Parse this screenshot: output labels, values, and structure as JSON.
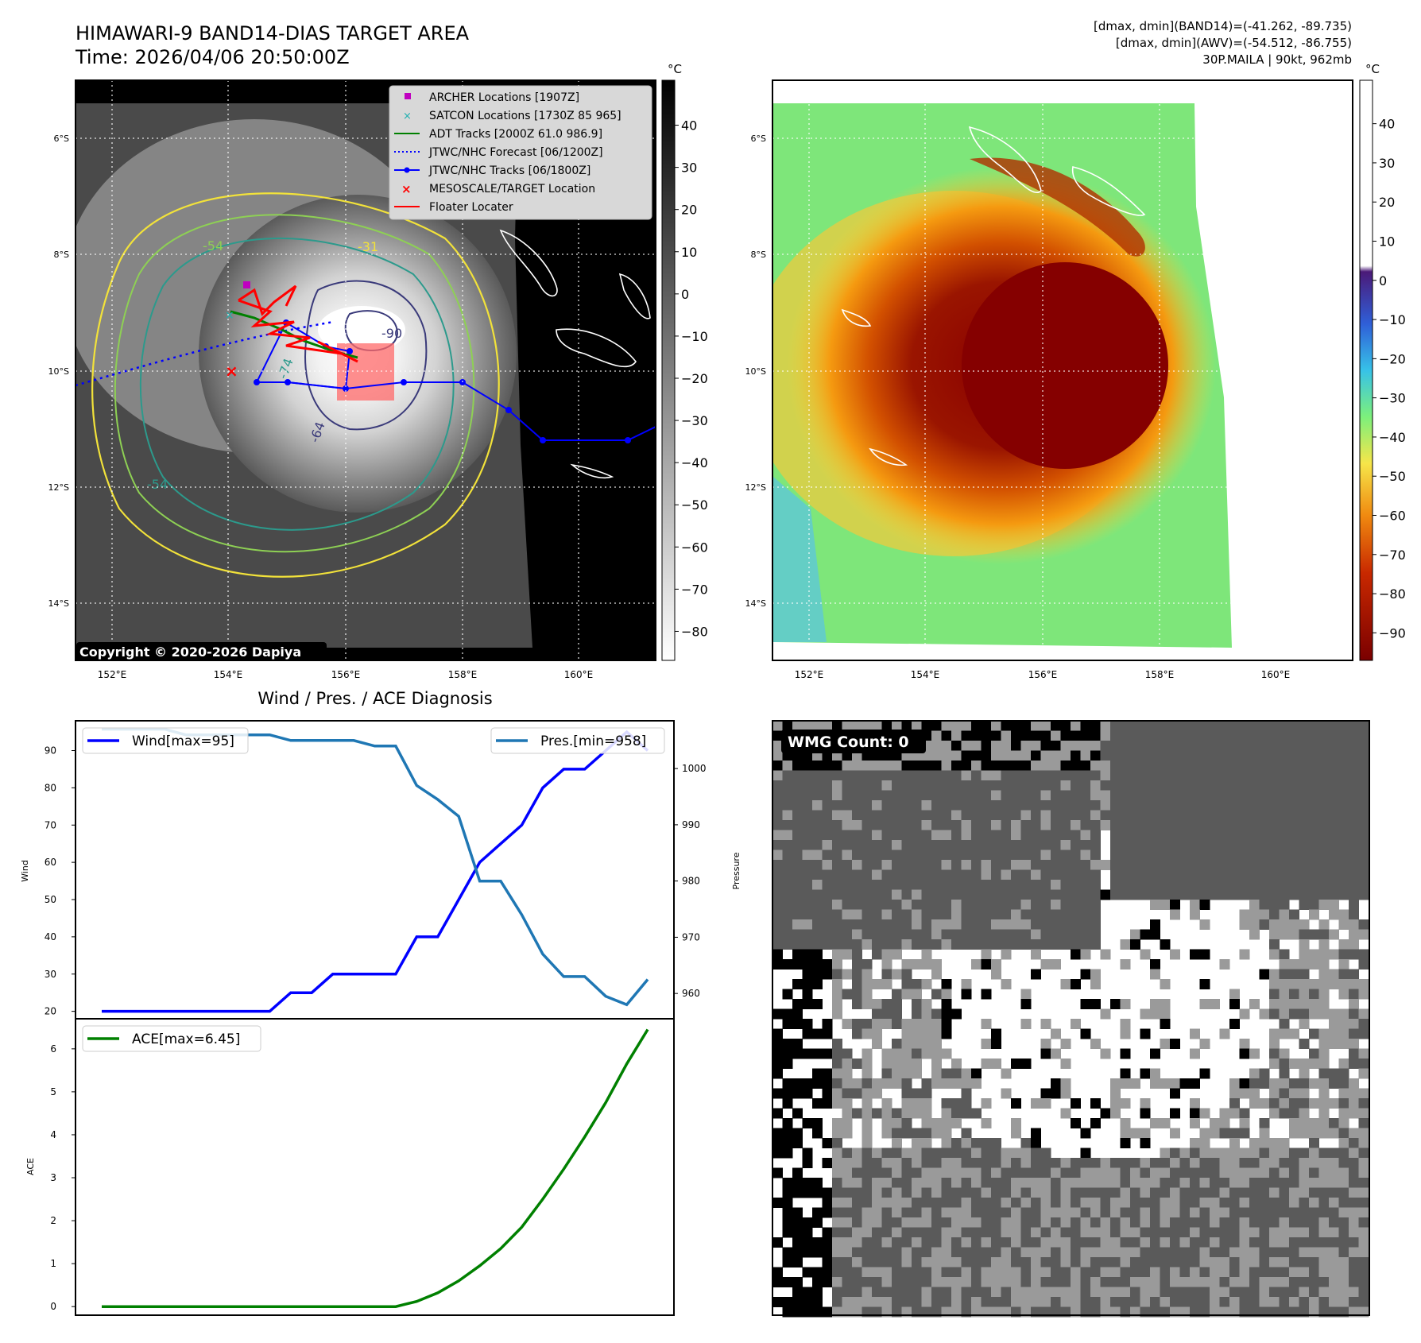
{
  "header": {
    "title_line1": "HIMAWARI-9 BAND14-DIAS TARGET AREA",
    "title_line2": "Time: 2026/04/06 20:50:00Z",
    "dmax_band14": "[dmax, dmin](BAND14)=(-41.262, -89.735)",
    "dmax_awv": "[dmax, dmin](AWV)=(-54.512, -86.755)",
    "storm": "30P.MAILA | 90kt, 962mb"
  },
  "map_axes": {
    "lat_ticks": [
      "6°S",
      "8°S",
      "10°S",
      "12°S",
      "14°S"
    ],
    "lon_ticks": [
      "152°E",
      "154°E",
      "156°E",
      "158°E",
      "160°E"
    ]
  },
  "ir_panel": {
    "colorbar_unit": "°C",
    "colorbar_ticks": [
      "40",
      "30",
      "20",
      "10",
      "0",
      "−10",
      "−20",
      "−30",
      "−40",
      "−50",
      "−60",
      "−70",
      "−80"
    ],
    "copyright": "Copyright © 2020-2026 Dapiya",
    "contour_labels": [
      "-54",
      "-90",
      "-54",
      "-64",
      "-74",
      "-31"
    ],
    "legend": [
      {
        "label": "ARCHER Locations [1907Z]",
        "color": "#c000c0"
      },
      {
        "label": "SATCON Locations [1730Z 85 965]",
        "color": "#20b0b0"
      },
      {
        "label": "ADT Tracks [2000Z 61.0 986.9]",
        "color": "#008000"
      },
      {
        "label": "JTWC/NHC Forecast [06/1200Z]",
        "color": "#0000ff"
      },
      {
        "label": "JTWC/NHC Tracks [06/1800Z]",
        "color": "#0000ff"
      },
      {
        "label": "MESOSCALE/TARGET Location",
        "color": "#ff0000"
      },
      {
        "label": "Floater Locater",
        "color": "#ff0000"
      }
    ]
  },
  "awv_panel": {
    "colorbar_unit": "°C",
    "colorbar_ticks": [
      "40",
      "30",
      "20",
      "10",
      "0",
      "−10",
      "−20",
      "−30",
      "−40",
      "−50",
      "−60",
      "−70",
      "−80",
      "−90"
    ]
  },
  "wmg_panel": {
    "label": "WMG Count: 0"
  },
  "chart_data": [
    {
      "type": "line",
      "title": "Wind / Pres. / ACE Diagnosis",
      "ylabel": "Wind",
      "y2label": "Pressure",
      "ylim": [
        18,
        98
      ],
      "y2lim": [
        955.5,
        1008.5
      ],
      "yticks": [
        20,
        30,
        40,
        50,
        60,
        70,
        80,
        90
      ],
      "y2ticks": [
        960,
        970,
        980,
        990,
        1000
      ],
      "series": [
        {
          "name": "Wind[max=95]",
          "axis": "left",
          "color": "#0000ff",
          "values": [
            20,
            20,
            20,
            20,
            20,
            20,
            20,
            20,
            20,
            25,
            25,
            30,
            30,
            30,
            30,
            40,
            40,
            50,
            60,
            65,
            70,
            80,
            85,
            85,
            90,
            95,
            90
          ]
        },
        {
          "name": "Pres.[min=958]",
          "axis": "right",
          "color": "#1f77b4",
          "values": [
            1007,
            1007,
            1007,
            1007,
            1006,
            1006,
            1006,
            1006,
            1006,
            1005,
            1005,
            1005,
            1005,
            1004,
            1004,
            997,
            994.5,
            991.5,
            980,
            980,
            974,
            967,
            963,
            963,
            959.5,
            958,
            962.5
          ]
        }
      ]
    },
    {
      "type": "line",
      "ylabel": "ACE",
      "ylim": [
        -0.2,
        6.7
      ],
      "yticks": [
        0,
        1,
        2,
        3,
        4,
        5,
        6
      ],
      "series": [
        {
          "name": "ACE[max=6.45]",
          "color": "#008000",
          "values": [
            0,
            0,
            0,
            0,
            0,
            0,
            0,
            0,
            0,
            0,
            0,
            0,
            0,
            0,
            0,
            0.12,
            0.32,
            0.6,
            0.95,
            1.35,
            1.85,
            2.5,
            3.2,
            3.95,
            4.75,
            5.65,
            6.45
          ]
        }
      ]
    }
  ]
}
